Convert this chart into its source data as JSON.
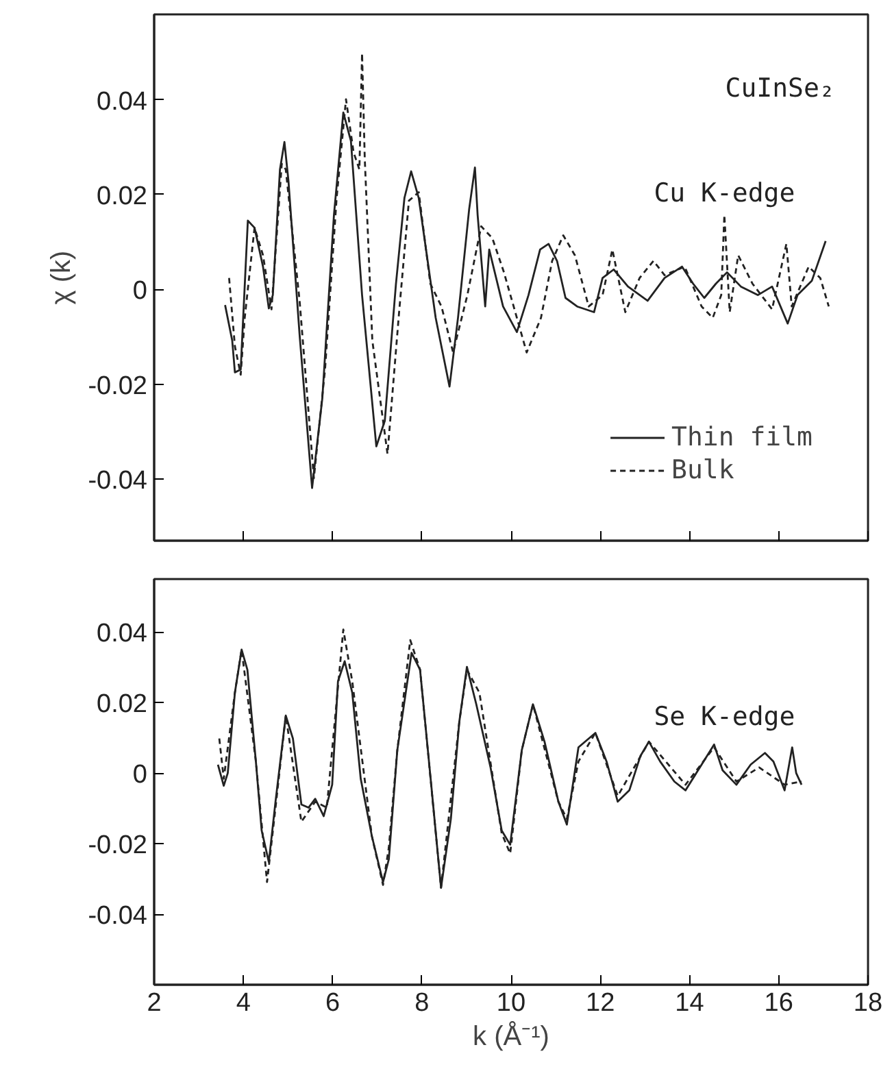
{
  "chart_data": [
    {
      "type": "line",
      "ylabel": "χ (k)",
      "annotations": [
        "CuInSe₂",
        "Cu K-edge"
      ],
      "xlim": [
        2,
        18
      ],
      "xticks": [
        2,
        4,
        6,
        8,
        10,
        12,
        14,
        16,
        18
      ],
      "ylim": [
        -0.053,
        0.058
      ],
      "yticks": [
        -0.04,
        -0.02,
        0,
        0.02,
        0.04
      ],
      "tick_labels": "y",
      "legend": "bottom right",
      "grid": false,
      "series": [
        {
          "name": "Thin film",
          "color": "#222222",
          "line_style": "solid",
          "x": [
            3.59,
            3.75,
            3.81,
            3.94,
            4.1,
            4.25,
            4.44,
            4.57,
            4.66,
            4.82,
            4.92,
            5.01,
            5.26,
            5.54,
            5.77,
            6.03,
            6.24,
            6.41,
            6.66,
            6.98,
            7.17,
            7.42,
            7.61,
            7.76,
            7.93,
            8.31,
            8.62,
            8.81,
            9.06,
            9.19,
            9.25,
            9.42,
            9.51,
            9.82,
            10.13,
            10.39,
            10.65,
            10.84,
            11.03,
            11.22,
            11.48,
            11.86,
            12.05,
            12.3,
            12.62,
            13.06,
            13.44,
            13.83,
            14.08,
            14.33,
            14.59,
            14.84,
            15.15,
            15.53,
            15.85,
            16.2,
            16.42,
            16.74,
            17.05
          ],
          "values": [
            -0.0033,
            -0.0108,
            -0.0175,
            -0.0169,
            0.0145,
            0.013,
            0.0048,
            -0.004,
            -0.0012,
            0.0253,
            0.0311,
            0.0229,
            -0.0096,
            -0.0419,
            -0.0229,
            0.0157,
            0.0373,
            0.0313,
            -0.0012,
            -0.0331,
            -0.0277,
            0.0012,
            0.0193,
            0.0249,
            0.0193,
            -0.006,
            -0.0205,
            -0.006,
            0.0169,
            0.0257,
            0.0157,
            -0.0036,
            0.0084,
            -0.0036,
            -0.009,
            -0.0012,
            0.0084,
            0.0096,
            0.006,
            -0.0018,
            -0.0036,
            -0.0048,
            0.0024,
            0.0042,
            0.0006,
            -0.0024,
            0.0024,
            0.0048,
            0.0012,
            -0.0018,
            0.0012,
            0.0036,
            0.0006,
            -0.0012,
            0.0006,
            -0.0072,
            -0.0012,
            0.0018,
            0.0102
          ]
        },
        {
          "name": "Bulk",
          "color": "#222222",
          "line_style": "dashed",
          "x": [
            3.68,
            3.81,
            3.94,
            4.03,
            4.25,
            4.44,
            4.63,
            4.86,
            4.95,
            5.26,
            5.58,
            5.83,
            6.09,
            6.3,
            6.47,
            6.6,
            6.66,
            6.72,
            6.89,
            7.23,
            7.49,
            7.71,
            7.93,
            8.19,
            8.44,
            8.7,
            9.02,
            9.33,
            9.58,
            9.84,
            10.35,
            10.67,
            10.92,
            11.17,
            11.43,
            11.74,
            12.05,
            12.27,
            12.56,
            12.88,
            13.19,
            13.44,
            13.89,
            14.27,
            14.52,
            14.71,
            14.78,
            14.9,
            15.09,
            15.41,
            15.85,
            16.17,
            16.29,
            16.67,
            16.93,
            17.12
          ],
          "values": [
            0.0024,
            -0.012,
            -0.018,
            -0.006,
            0.013,
            0.0072,
            -0.0042,
            0.0265,
            0.0253,
            -0.0024,
            -0.0398,
            -0.0169,
            0.0193,
            0.0401,
            0.0289,
            0.0253,
            0.0498,
            0.0277,
            -0.0108,
            -0.0347,
            -0.0048,
            0.0187,
            0.0205,
            0.0012,
            -0.0036,
            -0.0133,
            -0.0012,
            0.0133,
            0.0108,
            0.0036,
            -0.0133,
            -0.006,
            0.006,
            0.0114,
            0.0072,
            -0.0036,
            -0.0012,
            0.0084,
            -0.0048,
            0.0024,
            0.006,
            0.003,
            0.0048,
            -0.0036,
            -0.006,
            -0.0012,
            0.0157,
            -0.0048,
            0.0072,
            0.0012,
            -0.0042,
            0.0096,
            -0.0036,
            0.0048,
            0.0024,
            -0.0036
          ]
        }
      ]
    },
    {
      "type": "line",
      "xlabel": "k (Å⁻¹)",
      "annotations": [
        "Se K-edge"
      ],
      "xlim": [
        2,
        18
      ],
      "xticks": [
        2,
        4,
        6,
        8,
        10,
        12,
        14,
        16,
        18
      ],
      "ylim": [
        -0.06,
        0.055
      ],
      "yticks": [
        -0.04,
        -0.02,
        0,
        0.02,
        0.04
      ],
      "grid": false,
      "series": [
        {
          "color": "#222222",
          "line_style": "solid",
          "x": [
            3.43,
            3.56,
            3.65,
            3.81,
            3.96,
            4.09,
            4.28,
            4.41,
            4.57,
            4.72,
            4.95,
            5.11,
            5.3,
            5.46,
            5.61,
            5.8,
            5.99,
            6.12,
            6.27,
            6.44,
            6.63,
            6.88,
            7.13,
            7.26,
            7.45,
            7.77,
            7.96,
            8.21,
            8.43,
            8.65,
            8.84,
            9.01,
            9.22,
            9.54,
            9.79,
            9.98,
            10.24,
            10.49,
            10.75,
            11.06,
            11.25,
            11.51,
            11.89,
            12.14,
            12.39,
            12.65,
            12.9,
            13.09,
            13.34,
            13.66,
            13.91,
            14.23,
            14.55,
            14.74,
            15.05,
            15.37,
            15.69,
            15.88,
            16.13,
            16.3,
            16.39,
            16.51
          ],
          "values": [
            0.0024,
            -0.0036,
            0,
            0.0228,
            0.035,
            0.0293,
            0.0033,
            -0.0163,
            -0.0252,
            -0.0081,
            0.0163,
            0.0098,
            -0.0089,
            -0.0098,
            -0.0073,
            -0.0122,
            -0.0033,
            0.026,
            0.0317,
            0.0228,
            -0.0016,
            -0.0179,
            -0.0309,
            -0.0244,
            0.0065,
            0.0341,
            0.0293,
            -0.0033,
            -0.0325,
            -0.013,
            0.0146,
            0.0301,
            0.0195,
            0.0016,
            -0.0163,
            -0.0203,
            0.0065,
            0.0195,
            0.0089,
            -0.0081,
            -0.0146,
            0.0073,
            0.0114,
            0.0033,
            -0.0081,
            -0.0049,
            0.0049,
            0.0089,
            0.0033,
            -0.0024,
            -0.0049,
            0.0016,
            0.0081,
            0.0008,
            -0.0033,
            0.0024,
            0.0057,
            0.0033,
            -0.0049,
            0.0073,
            0,
            -0.0033
          ]
        },
        {
          "color": "#222222",
          "line_style": "dashed",
          "x": [
            3.46,
            3.56,
            3.81,
            3.96,
            4.28,
            4.53,
            4.72,
            4.95,
            5.3,
            5.61,
            5.87,
            6.12,
            6.24,
            6.44,
            6.88,
            7.13,
            7.26,
            7.45,
            7.74,
            7.96,
            8.43,
            8.84,
            9.01,
            9.29,
            9.79,
            9.98,
            10.24,
            10.49,
            11.06,
            11.25,
            11.51,
            11.89,
            12.39,
            13.09,
            13.91,
            14.55,
            15.05,
            15.56,
            16.13,
            16.51
          ],
          "values": [
            0.0098,
            -0.0016,
            0.0228,
            0.035,
            0.0033,
            -0.0309,
            -0.0098,
            0.0163,
            -0.0138,
            -0.0081,
            -0.0098,
            0.0244,
            0.0407,
            0.026,
            -0.0179,
            -0.0317,
            -0.0211,
            0.0065,
            0.0377,
            0.0293,
            -0.0325,
            0.0146,
            0.0293,
            0.0228,
            -0.0171,
            -0.0228,
            0.0065,
            0.0195,
            -0.0081,
            -0.013,
            0.0033,
            0.0114,
            -0.0065,
            0.0089,
            -0.0033,
            0.0073,
            -0.0024,
            0.0016,
            -0.0033,
            -0.0024
          ]
        }
      ]
    }
  ]
}
